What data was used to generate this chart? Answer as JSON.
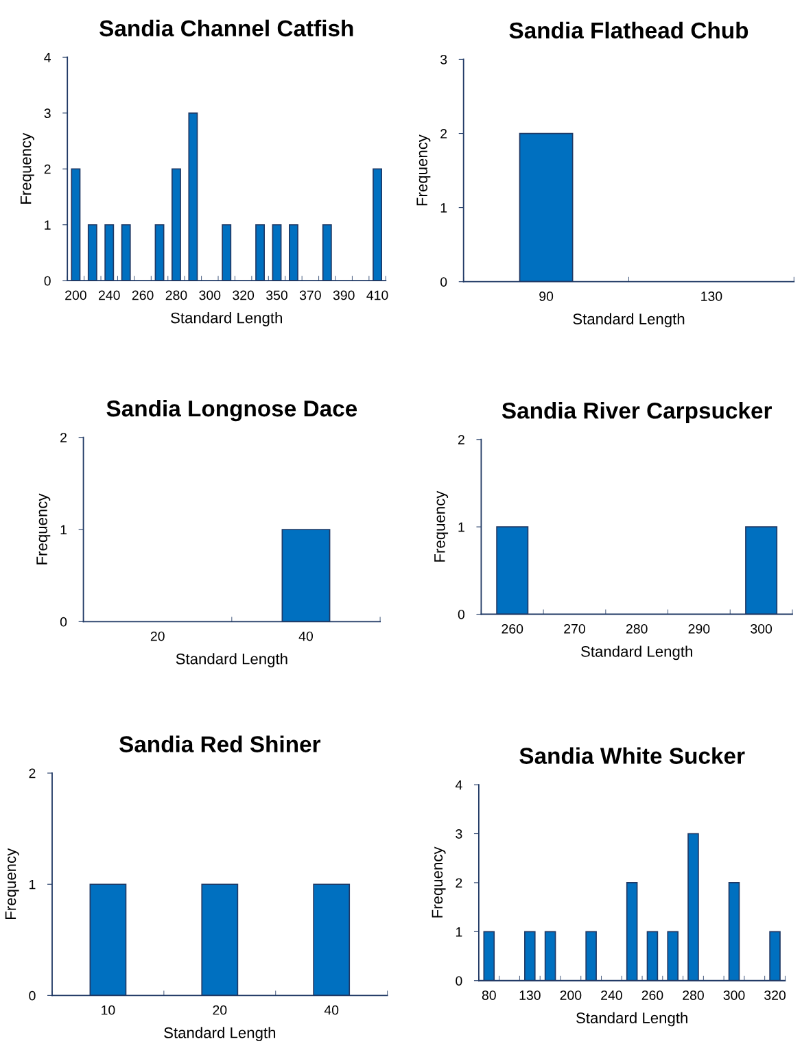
{
  "chart_data": [
    {
      "type": "bar",
      "title": "Sandia Channel Catfish",
      "xlabel": "Standard Length",
      "ylabel": "Frequency",
      "categories": [
        "200",
        null,
        "240",
        null,
        "260",
        null,
        "280",
        null,
        "300",
        null,
        "320",
        null,
        "350",
        null,
        "370",
        null,
        "390",
        null,
        "410"
      ],
      "values": [
        2,
        1,
        1,
        1,
        0,
        1,
        2,
        3,
        0,
        1,
        0,
        1,
        1,
        1,
        0,
        1,
        0,
        0,
        2
      ],
      "color": "#0070c0",
      "ylim": [
        0,
        4
      ],
      "yticks": [
        0,
        1,
        2,
        3,
        4
      ],
      "grid": false,
      "legend": false
    },
    {
      "type": "bar",
      "title": "Sandia Flathead Chub",
      "xlabel": "Standard Length",
      "ylabel": "Frequency",
      "categories": [
        "90",
        "130"
      ],
      "values": [
        2,
        0
      ],
      "color": "#0070c0",
      "ylim": [
        0,
        3
      ],
      "yticks": [
        0,
        1,
        2,
        3
      ],
      "grid": false,
      "legend": false
    },
    {
      "type": "bar",
      "title": "Sandia Longnose Dace",
      "xlabel": "Standard Length",
      "ylabel": "Frequency",
      "categories": [
        "20",
        "40"
      ],
      "values": [
        0,
        1
      ],
      "color": "#0070c0",
      "ylim": [
        0,
        2
      ],
      "yticks": [
        0,
        1,
        2
      ],
      "grid": false,
      "legend": false
    },
    {
      "type": "bar",
      "title": "Sandia River Carpsucker",
      "xlabel": "Standard Length",
      "ylabel": "Frequency",
      "categories": [
        "260",
        "270",
        "280",
        "290",
        "300"
      ],
      "values": [
        1,
        0,
        0,
        0,
        1
      ],
      "color": "#0070c0",
      "ylim": [
        0,
        2
      ],
      "yticks": [
        0,
        1,
        2
      ],
      "grid": false,
      "legend": false
    },
    {
      "type": "bar",
      "title": "Sandia Red Shiner",
      "xlabel": "Standard Length",
      "ylabel": "Frequency",
      "categories": [
        "10",
        "20",
        "40"
      ],
      "values": [
        1,
        1,
        1
      ],
      "color": "#0070c0",
      "ylim": [
        0,
        2
      ],
      "yticks": [
        0,
        1,
        2
      ],
      "grid": false,
      "legend": false
    },
    {
      "type": "bar",
      "title": "Sandia White Sucker",
      "xlabel": "Standard Length",
      "ylabel": "Frequency",
      "categories": [
        "80",
        null,
        "130",
        null,
        "200",
        null,
        "240",
        null,
        "260",
        null,
        "280",
        null,
        "300",
        null,
        "320"
      ],
      "values": [
        1,
        0,
        1,
        1,
        0,
        1,
        0,
        2,
        1,
        1,
        3,
        0,
        2,
        0,
        1
      ],
      "color": "#0070c0",
      "ylim": [
        0,
        4
      ],
      "yticks": [
        0,
        1,
        2,
        3,
        4
      ],
      "grid": false,
      "legend": false
    }
  ]
}
